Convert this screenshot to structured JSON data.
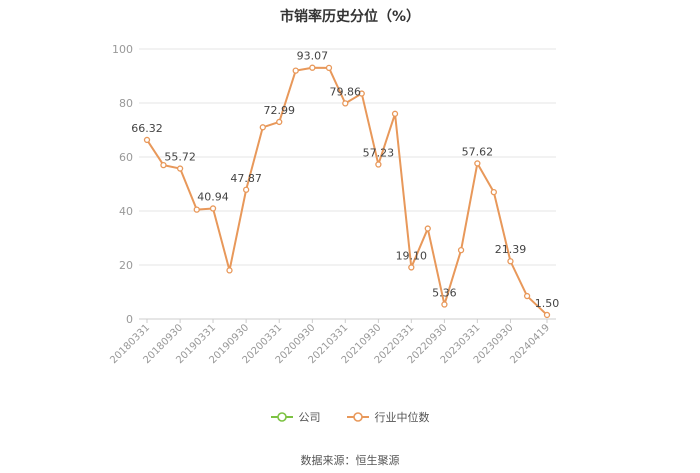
{
  "chart_data": {
    "type": "line",
    "title": "市销率历史分位（%）",
    "xlabel": "",
    "ylabel": "",
    "ylim": [
      0,
      100
    ],
    "yticks": [
      0,
      20,
      40,
      60,
      80,
      100
    ],
    "x_tick_labels": [
      "20180331",
      "20180930",
      "20190331",
      "20190930",
      "20200331",
      "20200930",
      "20210331",
      "20210930",
      "20220331",
      "20220930",
      "20230331",
      "20230930",
      "20240419"
    ],
    "grid": true,
    "legend_position": "bottom",
    "series": [
      {
        "name": "公司",
        "color": "#7cc242",
        "x": [],
        "values": []
      },
      {
        "name": "行业中位数",
        "color": "#e8985a",
        "x": [
          "20180331",
          "20180630",
          "20180930",
          "20181231",
          "20190331",
          "20190630",
          "20190930",
          "20191231",
          "20200331",
          "20200630",
          "20200930",
          "20201231",
          "20210331",
          "20210630",
          "20210930",
          "20211231",
          "20220331",
          "20220630",
          "20220930",
          "20221231",
          "20230331",
          "20230630",
          "20230930",
          "20231231",
          "20240419"
        ],
        "values": [
          66.32,
          57,
          55.72,
          40.5,
          40.94,
          18,
          47.87,
          71,
          72.99,
          92,
          93.07,
          93,
          79.86,
          83.5,
          57.23,
          76,
          19.1,
          33.5,
          5.36,
          25.5,
          57.62,
          47,
          21.39,
          8.5,
          1.5
        ],
        "data_labels": [
          {
            "x": "20180331",
            "text": "66.32"
          },
          {
            "x": "20180930",
            "text": "55.72"
          },
          {
            "x": "20190331",
            "text": "40.94"
          },
          {
            "x": "20190930",
            "text": "47.87"
          },
          {
            "x": "20200331",
            "text": "72.99"
          },
          {
            "x": "20200930",
            "text": "93.07"
          },
          {
            "x": "20210331",
            "text": "79.86"
          },
          {
            "x": "20210930",
            "text": "57.23"
          },
          {
            "x": "20220331",
            "text": "19.10"
          },
          {
            "x": "20220930",
            "text": "5.36"
          },
          {
            "x": "20230331",
            "text": "57.62"
          },
          {
            "x": "20230930",
            "text": "21.39"
          },
          {
            "x": "20240419",
            "text": "1.50"
          }
        ]
      }
    ]
  },
  "legend": {
    "company_label": "公司",
    "industry_label": "行业中位数"
  },
  "source": "数据来源：恒生聚源",
  "colors": {
    "company": "#7cc242",
    "industry": "#e8985a",
    "grid": "#e6e6e6",
    "axis_text": "#999999"
  }
}
